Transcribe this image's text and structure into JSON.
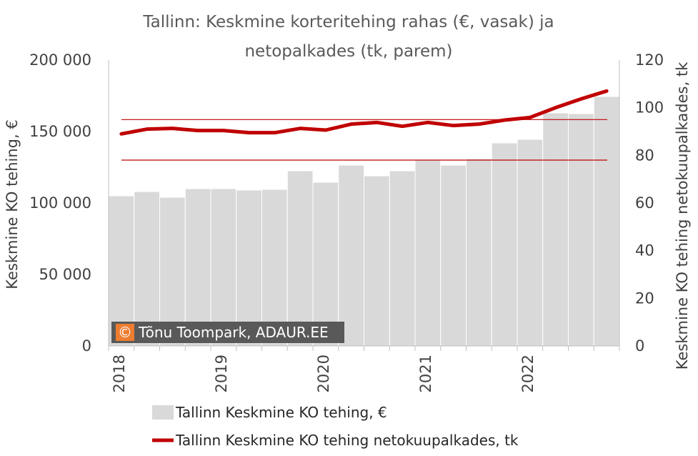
{
  "chart_data": {
    "type": "bar",
    "title_lines": [
      "Tallinn: Keskmine korteritehing rahas (€, vasak) ja",
      "netopalkades (tk, parem)"
    ],
    "ylabel_left": "Keskmine KO tehing, €",
    "ylabel_right": "Keskmine KO tehing netokuupalkades, tk",
    "ylim_left": [
      0,
      200000
    ],
    "ylim_right": [
      0,
      120
    ],
    "yticks_left": [
      "0",
      "50 000",
      "100 000",
      "150 000",
      "200 000"
    ],
    "yticks_right": [
      "0",
      "20",
      "40",
      "60",
      "80",
      "100",
      "120"
    ],
    "x_ticks": [
      "2018",
      "2019",
      "2020",
      "2021",
      "2022"
    ],
    "categories": [
      "2018 Q1",
      "2018 Q2",
      "2018 Q3",
      "2018 Q4",
      "2019 Q1",
      "2019 Q2",
      "2019 Q3",
      "2019 Q4",
      "2020 Q1",
      "2020 Q2",
      "2020 Q3",
      "2020 Q4",
      "2021 Q1",
      "2021 Q2",
      "2021 Q3",
      "2021 Q4",
      "2022 Q1",
      "2022 Q2",
      "2022 Q3",
      "2022 Q4"
    ],
    "series": [
      {
        "name": "Tallinn Keskmine KO tehing, €",
        "kind": "bar",
        "axis": "left",
        "color": "#d9d9d9",
        "values": [
          105000,
          108000,
          104000,
          110000,
          110000,
          109000,
          109500,
          122500,
          114500,
          126500,
          119000,
          122500,
          130000,
          126500,
          131000,
          142000,
          144500,
          163000,
          162500,
          174500
        ]
      },
      {
        "name": "Tallinn Keskmine KO tehing netokuupalkades, tk",
        "kind": "line",
        "axis": "right",
        "color": "#c00000",
        "values": [
          89,
          91,
          91.3,
          90.4,
          90.4,
          89.5,
          89.5,
          91.3,
          90.6,
          93.1,
          93.8,
          92.2,
          93.8,
          92.5,
          93.1,
          94.8,
          95.9,
          100,
          103.7,
          107
        ]
      }
    ],
    "reference_lines_right": [
      95,
      78
    ],
    "grid": false,
    "legend_position": "bottom"
  },
  "credit": {
    "symbol": "©",
    "text": "Tõnu Toompark, ADAUR.EE"
  },
  "colors": {
    "bar_fill": "#d9d9d9",
    "bar_stroke": "#ffffff",
    "line": "#c00000",
    "credit_bg": "#595959",
    "credit_symbol_bg": "#ed7d31",
    "axis_line": "#bfbfbf"
  }
}
